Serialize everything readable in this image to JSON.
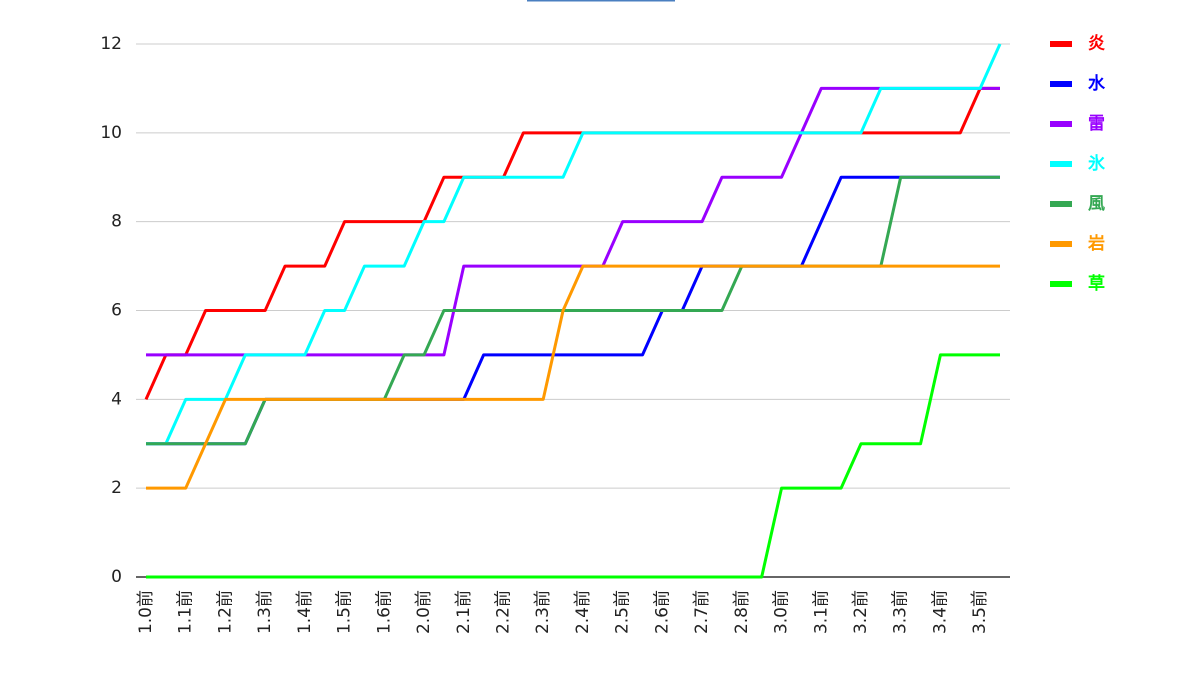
{
  "chart_data": {
    "type": "line",
    "categories": [
      "1.0前",
      null,
      "1.1前",
      null,
      "1.2前",
      null,
      "1.3前",
      null,
      "1.4前",
      null,
      "1.5前",
      null,
      "1.6前",
      null,
      "2.0前",
      null,
      "2.1前",
      null,
      "2.2前",
      null,
      "2.3前",
      null,
      "2.4前",
      null,
      "2.5前",
      null,
      "2.6前",
      null,
      "2.7前",
      null,
      "2.8前",
      null,
      "3.0前",
      null,
      "3.1前",
      null,
      "3.2前",
      null,
      "3.3前",
      null,
      "3.4前",
      null,
      "3.5前",
      null
    ],
    "series": [
      {
        "name": "炎",
        "color": "#ff0000",
        "values": [
          4,
          5,
          5,
          6,
          6,
          6,
          6,
          7,
          7,
          7,
          8,
          8,
          8,
          8,
          8,
          9,
          9,
          9,
          9,
          10,
          10,
          10,
          10,
          10,
          10,
          10,
          10,
          10,
          10,
          10,
          10,
          10,
          10,
          10,
          10,
          10,
          10,
          10,
          10,
          10,
          10,
          10,
          11,
          11
        ]
      },
      {
        "name": "水",
        "color": "#0000ff",
        "values": [
          3,
          3,
          3,
          3,
          3,
          3,
          4,
          4,
          4,
          4,
          4,
          4,
          4,
          4,
          4,
          4,
          4,
          5,
          5,
          5,
          5,
          5,
          5,
          5,
          5,
          5,
          6,
          6,
          7,
          7,
          7,
          7,
          7,
          7,
          8,
          9,
          9,
          9,
          9,
          9,
          9,
          9,
          9,
          9
        ]
      },
      {
        "name": "雷",
        "color": "#9900ff",
        "values": [
          5,
          5,
          5,
          5,
          5,
          5,
          5,
          5,
          5,
          5,
          5,
          5,
          5,
          5,
          5,
          5,
          7,
          7,
          7,
          7,
          7,
          7,
          7,
          7,
          8,
          8,
          8,
          8,
          8,
          9,
          9,
          9,
          9,
          10,
          11,
          11,
          11,
          11,
          11,
          11,
          11,
          11,
          11,
          11
        ]
      },
      {
        "name": "氷",
        "color": "#00ffff",
        "values": [
          3,
          3,
          4,
          4,
          4,
          5,
          5,
          5,
          5,
          6,
          6,
          7,
          7,
          7,
          8,
          8,
          9,
          9,
          9,
          9,
          9,
          9,
          10,
          10,
          10,
          10,
          10,
          10,
          10,
          10,
          10,
          10,
          10,
          10,
          10,
          10,
          10,
          11,
          11,
          11,
          11,
          11,
          11,
          12
        ]
      },
      {
        "name": "風",
        "color": "#34a853",
        "values": [
          3,
          3,
          3,
          3,
          3,
          3,
          4,
          4,
          4,
          4,
          4,
          4,
          4,
          5,
          5,
          6,
          6,
          6,
          6,
          6,
          6,
          6,
          6,
          6,
          6,
          6,
          6,
          6,
          6,
          6,
          7,
          7,
          7,
          7,
          7,
          7,
          7,
          7,
          9,
          9,
          9,
          9,
          9,
          9
        ]
      },
      {
        "name": "岩",
        "color": "#ff9900",
        "values": [
          2,
          2,
          2,
          3,
          4,
          4,
          4,
          4,
          4,
          4,
          4,
          4,
          4,
          4,
          4,
          4,
          4,
          4,
          4,
          4,
          4,
          6,
          7,
          7,
          7,
          7,
          7,
          7,
          7,
          7,
          7,
          7,
          7,
          7,
          7,
          7,
          7,
          7,
          7,
          7,
          7,
          7,
          7,
          7
        ]
      },
      {
        "name": "草",
        "color": "#00ff00",
        "values": [
          0,
          0,
          0,
          0,
          0,
          0,
          0,
          0,
          0,
          0,
          0,
          0,
          0,
          0,
          0,
          0,
          0,
          0,
          0,
          0,
          0,
          0,
          0,
          0,
          0,
          0,
          0,
          0,
          0,
          0,
          0,
          0,
          2,
          2,
          2,
          2,
          3,
          3,
          3,
          3,
          5,
          5,
          5,
          5
        ]
      }
    ],
    "ylim": [
      0,
      12
    ],
    "yticks": [
      0,
      2,
      4,
      6,
      8,
      10,
      12
    ],
    "grid": true,
    "legend": "right"
  }
}
